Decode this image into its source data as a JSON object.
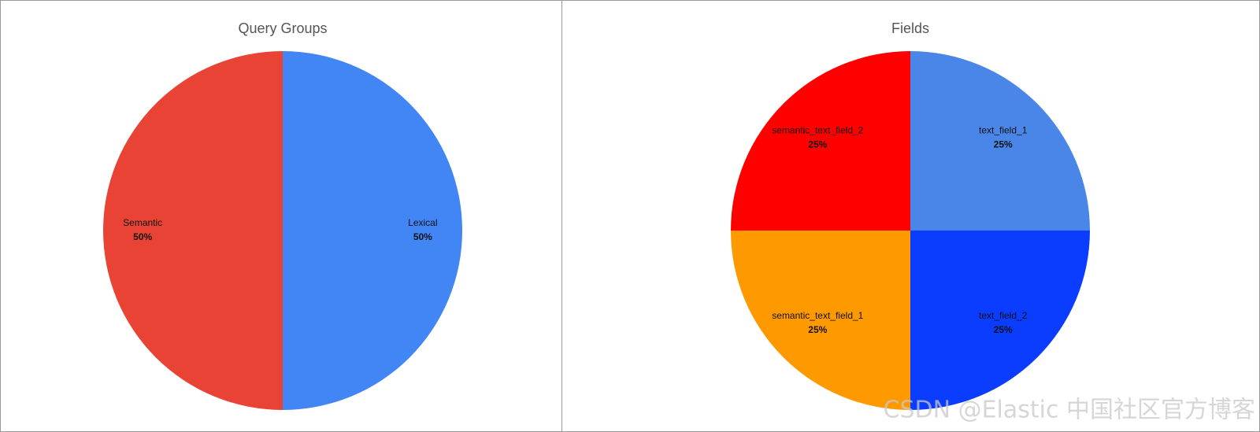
{
  "chart_data": [
    {
      "type": "pie",
      "title": "Query Groups",
      "categories": [
        "Lexical",
        "Semantic"
      ],
      "values": [
        50,
        50
      ],
      "value_labels": [
        "50%",
        "50%"
      ],
      "colors": [
        "#4285f4",
        "#e84335"
      ]
    },
    {
      "type": "pie",
      "title": "Fields",
      "categories": [
        "text_field_1",
        "text_field_2",
        "semantic_text_field_1",
        "semantic_text_field_2"
      ],
      "values": [
        25,
        25,
        25,
        25
      ],
      "value_labels": [
        "25%",
        "25%",
        "25%",
        "25%"
      ],
      "colors": [
        "#4a86e8",
        "#0a3dff",
        "#ff9900",
        "#ff0000"
      ]
    }
  ],
  "watermark": "CSDN @Elastic 中国社区官方博客"
}
